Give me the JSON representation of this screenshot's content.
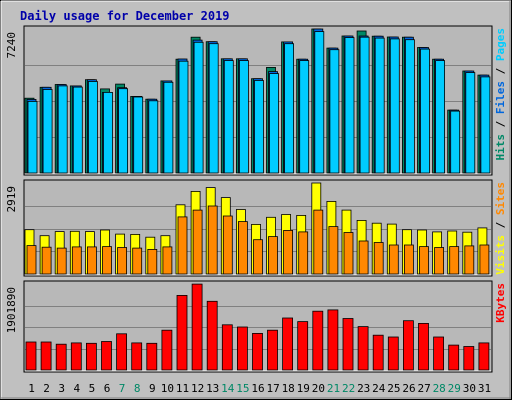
{
  "chart_data": {
    "type": "bar",
    "title": "Daily usage for December 2019",
    "categories": [
      "1",
      "2",
      "3",
      "4",
      "5",
      "6",
      "7",
      "8",
      "9",
      "10",
      "11",
      "12",
      "13",
      "14",
      "15",
      "16",
      "17",
      "18",
      "19",
      "20",
      "21",
      "22",
      "23",
      "24",
      "25",
      "26",
      "27",
      "28",
      "29",
      "30",
      "31"
    ],
    "weekend_days": [
      "7",
      "8",
      "14",
      "15",
      "21",
      "22",
      "28",
      "29"
    ],
    "panels": [
      {
        "name": "top",
        "ylim": [
          0,
          7240
        ],
        "max_label": "7240",
        "legend": [
          "Pages",
          "Files",
          "Hits"
        ],
        "legend_colors": [
          "#00ccff",
          "#0066dd",
          "#008866"
        ],
        "series": [
          {
            "name": "Hits",
            "color": "#008866",
            "values": [
              3760,
              4310,
              4450,
              4380,
              4690,
              4230,
              4470,
              3850,
              3710,
              4630,
              5720,
              6830,
              6600,
              5740,
              5740,
              4740,
              5310,
              6590,
              5720,
              7240,
              6280,
              6890,
              7140,
              6880,
              6840,
              6830,
              6310,
              5720,
              3160,
              5130,
              4920
            ]
          },
          {
            "name": "Files",
            "color": "#0066dd",
            "values": [
              3700,
              4310,
              4450,
              4380,
              4690,
              4050,
              4290,
              3850,
              3710,
              4630,
              5730,
              6680,
              6600,
              5740,
              5740,
              4740,
              5100,
              6590,
              5720,
              7240,
              6280,
              6890,
              6890,
              6880,
              6840,
              6830,
              6310,
              5720,
              3160,
              5130,
              4920
            ]
          },
          {
            "name": "Pages",
            "color": "#00ccff",
            "values": [
              3600,
              4200,
              4380,
              4320,
              4600,
              4050,
              4240,
              3820,
              3630,
              4560,
              5620,
              6570,
              6500,
              5650,
              5650,
              4650,
              5000,
              6500,
              5650,
              7110,
              6200,
              6810,
              6830,
              6780,
              6740,
              6700,
              6230,
              5650,
              3110,
              5050,
              4830
            ]
          }
        ]
      },
      {
        "name": "middle",
        "ylim": [
          0,
          2919
        ],
        "max_label": "2919",
        "legend": [
          "Sites",
          "Visits"
        ],
        "legend_colors": [
          "#ff8800",
          "#ffff00"
        ],
        "series": [
          {
            "name": "Visits",
            "color": "#ffff00",
            "values": [
              1420,
              1230,
              1360,
              1370,
              1360,
              1410,
              1280,
              1270,
              1180,
              1230,
              2220,
              2650,
              2770,
              2450,
              2070,
              1590,
              1820,
              1910,
              1880,
              2920,
              2330,
              2050,
              1720,
              1630,
              1600,
              1420,
              1410,
              1350,
              1380,
              1340,
              1480
            ]
          },
          {
            "name": "Sites",
            "color": "#ff8800",
            "values": [
              910,
              860,
              830,
              870,
              870,
              880,
              850,
              830,
              790,
              870,
              1830,
              2050,
              2180,
              1860,
              1680,
              1100,
              1200,
              1400,
              1350,
              2050,
              1520,
              1330,
              1060,
              1010,
              930,
              930,
              880,
              850,
              880,
              900,
              930
            ]
          }
        ]
      },
      {
        "name": "bottom",
        "ylim": [
          0,
          1901890
        ],
        "max_label": "1901890",
        "legend": [
          "KBytes"
        ],
        "legend_colors": [
          "#ff0000"
        ],
        "series": [
          {
            "name": "KBytes",
            "color": "#ff0000",
            "values": [
              620000,
              620000,
              570000,
              600000,
              590000,
              630000,
              800000,
              600000,
              590000,
              880000,
              1650000,
              1900000,
              1520000,
              1000000,
              950000,
              810000,
              880000,
              1150000,
              1070000,
              1300000,
              1330000,
              1140000,
              960000,
              770000,
              730000,
              1090000,
              1030000,
              730000,
              550000,
              520000,
              600000
            ]
          }
        ]
      }
    ]
  }
}
